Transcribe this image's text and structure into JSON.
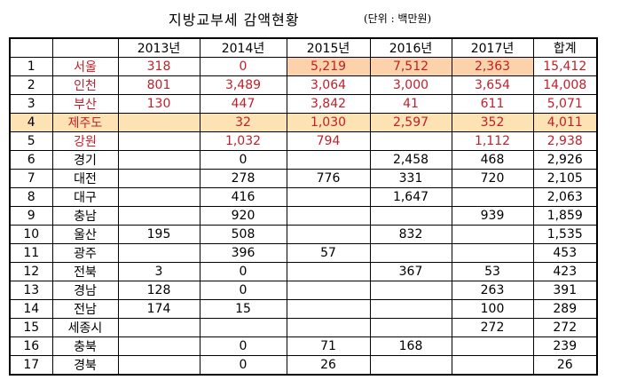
{
  "title": "지방교부세 감액현황",
  "unit": "(단위 : 백만원)",
  "headers": [
    "",
    "",
    "2013년",
    "2014년",
    "2015년",
    "2016년",
    "2017년",
    "합계"
  ],
  "rows": [
    {
      "no": "1",
      "region": "서울",
      "y2013": "318",
      "y2014": "0",
      "y2015": "5,219",
      "y2016": "7,512",
      "y2017": "2,363",
      "sum": "15,412"
    },
    {
      "no": "2",
      "region": "인천",
      "y2013": "801",
      "y2014": "3,489",
      "y2015": "3,064",
      "y2016": "3,000",
      "y2017": "3,654",
      "sum": "14,008"
    },
    {
      "no": "3",
      "region": "부산",
      "y2013": "130",
      "y2014": "447",
      "y2015": "3,842",
      "y2016": "41",
      "y2017": "611",
      "sum": "5,071"
    },
    {
      "no": "4",
      "region": "제주도",
      "y2013": "",
      "y2014": "32",
      "y2015": "1,030",
      "y2016": "2,597",
      "y2017": "352",
      "sum": "4,011"
    },
    {
      "no": "5",
      "region": "강원",
      "y2013": "",
      "y2014": "1,032",
      "y2015": "794",
      "y2016": "",
      "y2017": "1,112",
      "sum": "2,938"
    },
    {
      "no": "6",
      "region": "경기",
      "y2013": "",
      "y2014": "0",
      "y2015": "",
      "y2016": "2,458",
      "y2017": "468",
      "sum": "2,926"
    },
    {
      "no": "7",
      "region": "대전",
      "y2013": "",
      "y2014": "278",
      "y2015": "776",
      "y2016": "331",
      "y2017": "720",
      "sum": "2,105"
    },
    {
      "no": "8",
      "region": "대구",
      "y2013": "",
      "y2014": "416",
      "y2015": "",
      "y2016": "1,647",
      "y2017": "",
      "sum": "2,063"
    },
    {
      "no": "9",
      "region": "충남",
      "y2013": "",
      "y2014": "920",
      "y2015": "",
      "y2016": "",
      "y2017": "939",
      "sum": "1,859"
    },
    {
      "no": "10",
      "region": "울산",
      "y2013": "195",
      "y2014": "508",
      "y2015": "",
      "y2016": "832",
      "y2017": "",
      "sum": "1,535"
    },
    {
      "no": "11",
      "region": "광주",
      "y2013": "",
      "y2014": "396",
      "y2015": "57",
      "y2016": "",
      "y2017": "",
      "sum": "453"
    },
    {
      "no": "12",
      "region": "전북",
      "y2013": "3",
      "y2014": "0",
      "y2015": "",
      "y2016": "367",
      "y2017": "53",
      "sum": "423"
    },
    {
      "no": "13",
      "region": "경남",
      "y2013": "128",
      "y2014": "0",
      "y2015": "",
      "y2016": "",
      "y2017": "263",
      "sum": "391"
    },
    {
      "no": "14",
      "region": "전남",
      "y2013": "174",
      "y2014": "15",
      "y2015": "",
      "y2016": "",
      "y2017": "100",
      "sum": "289"
    },
    {
      "no": "15",
      "region": "세종시",
      "y2013": "",
      "y2014": "",
      "y2015": "",
      "y2016": "",
      "y2017": "272",
      "sum": "272"
    },
    {
      "no": "16",
      "region": "충북",
      "y2013": "",
      "y2014": "0",
      "y2015": "71",
      "y2016": "168",
      "y2017": "",
      "sum": "239"
    },
    {
      "no": "17",
      "region": "경북",
      "y2013": "",
      "y2014": "0",
      "y2015": "26",
      "y2016": "",
      "y2017": "",
      "sum": "26"
    }
  ],
  "colors": {
    "highlight_text": "#c0202a",
    "highlight_row_bg": "#fde2b3",
    "highlight_cell_bg": "#fbd2aa"
  }
}
